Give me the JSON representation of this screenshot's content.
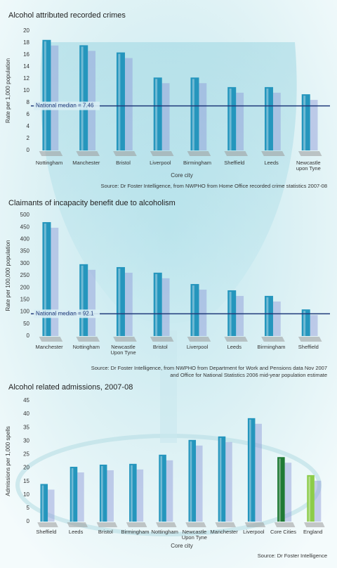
{
  "chart_data": [
    {
      "type": "bar",
      "title": "Alcohol attributed recorded crimes",
      "ylabel": "Rate per 1,000 population",
      "xlabel": "Core city",
      "categories": [
        "Nottingham",
        "Manchester",
        "Bristol",
        "Liverpool",
        "Birmingham",
        "Sheffield",
        "Leeds",
        "Newcastle upon Tyne"
      ],
      "values": [
        18.5,
        17.6,
        16.4,
        12.2,
        12.2,
        10.6,
        10.6,
        9.4
      ],
      "colors": [
        "#2596bd",
        "#2596bd",
        "#2596bd",
        "#2596bd",
        "#2596bd",
        "#2596bd",
        "#2596bd",
        "#2596bd"
      ],
      "ylim": [
        0,
        20
      ],
      "yticks": [
        0,
        2,
        4,
        6,
        8,
        10,
        12,
        14,
        16,
        18,
        20
      ],
      "grid": false,
      "median": {
        "value": 7.46,
        "label": "National median = 7.46"
      },
      "source": [
        "Source: Dr Foster Intelligence, from NWPHO from Home Office recorded crime statistics 2007-08"
      ]
    },
    {
      "type": "bar",
      "title": "Claimants of incapacity benefit due to alcoholism",
      "ylabel": "Rate per 100,000 population",
      "categories": [
        "Manchester",
        "Nottingham",
        "Newcastle Upon Tyne",
        "Bristol",
        "Liverpool",
        "Leeds",
        "Birmingham",
        "Sheffield"
      ],
      "values": [
        471,
        297,
        285,
        262,
        215,
        189,
        166,
        110
      ],
      "colors": [
        "#2596bd",
        "#2596bd",
        "#2596bd",
        "#2596bd",
        "#2596bd",
        "#2596bd",
        "#2596bd",
        "#2596bd"
      ],
      "ylim": [
        0,
        500
      ],
      "yticks": [
        0,
        50,
        100,
        150,
        200,
        250,
        300,
        350,
        400,
        450,
        500
      ],
      "grid": false,
      "median": {
        "value": 92.1,
        "label": "National median = 92.1"
      },
      "source": [
        "Source: Dr Foster Intelligence, from NWPHO from Department for Work and Pensions data Nov 2007",
        "and Office for National Statistics 2006 mid-year population estimate"
      ]
    },
    {
      "type": "bar",
      "title": "Alcohol related admissions, 2007-08",
      "ylabel": "Admissions per 1,000 spells",
      "xlabel": "Core city",
      "categories": [
        "Sheffield",
        "Leeds",
        "Bristol",
        "Birmingham",
        "Nottingham",
        "Newcastle Upon Tyne",
        "Manchester",
        "Liverpool",
        "Core Cities",
        "England"
      ],
      "values": [
        14,
        20.4,
        21.2,
        21.5,
        24.9,
        30.4,
        31.7,
        38.5,
        24,
        17.3
      ],
      "colors": [
        "#2596bd",
        "#2596bd",
        "#2596bd",
        "#2596bd",
        "#2596bd",
        "#2596bd",
        "#2596bd",
        "#2596bd",
        "#1f7a35",
        "#8ccc4a"
      ],
      "ylim": [
        0,
        45
      ],
      "yticks": [
        0,
        5,
        10,
        15,
        20,
        25,
        30,
        35,
        40,
        45
      ],
      "grid": false,
      "source": [
        "Source: Dr Foster Intelligence"
      ]
    }
  ]
}
